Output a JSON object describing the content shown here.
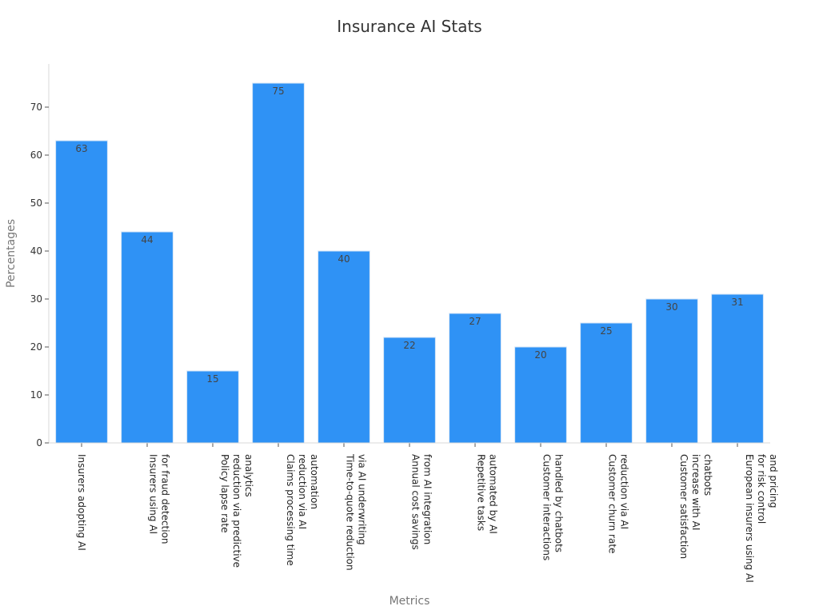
{
  "chart_data": {
    "type": "bar",
    "title": "Insurance AI Stats",
    "xlabel": "Metrics",
    "ylabel": "Percentages",
    "categories": [
      "Insurers adopting AI",
      "Insurers using AI\nfor fraud detection",
      "Policy lapse rate\nreduction via predictive\nanalytics",
      "Claims processing time\nreduction via AI\nautomation",
      "Time-to-quote reduction\nvia AI underwriting",
      "Annual cost savings\nfrom AI integration",
      "Repetitive tasks\nautomated by AI",
      "Customer interactions\nhandled by chatbots",
      "Customer churn rate\nreduction via AI",
      "Customer satisfaction\nincrease with AI\nchatbots",
      "European insurers using AI\nfor risk control\nand pricing"
    ],
    "values": [
      63,
      44,
      15,
      75,
      40,
      22,
      27,
      20,
      25,
      30,
      31
    ],
    "ylim": [
      0,
      79
    ],
    "yticks": [
      0,
      10,
      20,
      30,
      40,
      50,
      60,
      70
    ],
    "bar_color": "#2f92f5",
    "grid": false,
    "data_labels": true
  }
}
